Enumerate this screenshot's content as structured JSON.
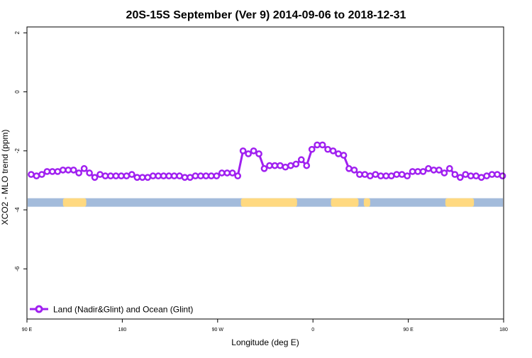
{
  "colors": {
    "series": "#a020f0",
    "land": "#ffd980",
    "ocean": "#a3bbdb",
    "frame": "#000000"
  },
  "chart_data": {
    "type": "line",
    "title": "20S-15S September (Ver 9)   2014-09-06 to 2018-12-31",
    "xlabel": "Longitude (deg E)",
    "ylabel": "XCO2 - MLO trend (ppm)",
    "xlim": [
      90,
      540
    ],
    "ylim": [
      -7.7,
      2.2
    ],
    "x_ticks": [
      {
        "value": 90,
        "label": "90 E"
      },
      {
        "value": 180,
        "label": "180"
      },
      {
        "value": 270,
        "label": "90 W"
      },
      {
        "value": 360,
        "label": "0"
      },
      {
        "value": 450,
        "label": "90 E"
      },
      {
        "value": 540,
        "label": "180"
      }
    ],
    "y_ticks": [
      {
        "value": 2,
        "label": "2"
      },
      {
        "value": 0,
        "label": "0"
      },
      {
        "value": -2,
        "label": "-2"
      },
      {
        "value": -4,
        "label": "-4"
      },
      {
        "value": -6,
        "label": "-6"
      }
    ],
    "grid": false,
    "legend_position": "bottom-left",
    "series": [
      {
        "name": "Land (Nadir&Glint) and Ocean (Glint)",
        "x": [
          94,
          99,
          104,
          109,
          114,
          119,
          124,
          129,
          134,
          139,
          144,
          149,
          154,
          159,
          164,
          169,
          174,
          179,
          184,
          189,
          194,
          199,
          204,
          209,
          214,
          219,
          224,
          229,
          234,
          239,
          244,
          249,
          254,
          259,
          264,
          269,
          274,
          279,
          284,
          289,
          294,
          299,
          304,
          309,
          314,
          319,
          324,
          329,
          334,
          339,
          344,
          349,
          354,
          359,
          364,
          369,
          374,
          379,
          384,
          389,
          394,
          399,
          404,
          409,
          414,
          419,
          424,
          429,
          434,
          439,
          444,
          449,
          454,
          459,
          464,
          469,
          474,
          479,
          484,
          489,
          494,
          499,
          504,
          509,
          514,
          519,
          524,
          529,
          534,
          539
        ],
        "y": [
          -2.8,
          -2.85,
          -2.8,
          -2.7,
          -2.7,
          -2.7,
          -2.65,
          -2.65,
          -2.65,
          -2.75,
          -2.6,
          -2.75,
          -2.9,
          -2.8,
          -2.85,
          -2.85,
          -2.85,
          -2.85,
          -2.85,
          -2.8,
          -2.9,
          -2.9,
          -2.9,
          -2.85,
          -2.85,
          -2.85,
          -2.85,
          -2.85,
          -2.85,
          -2.9,
          -2.9,
          -2.85,
          -2.85,
          -2.85,
          -2.85,
          -2.85,
          -2.75,
          -2.75,
          -2.75,
          -2.85,
          -2.0,
          -2.1,
          -2.0,
          -2.1,
          -2.6,
          -2.5,
          -2.5,
          -2.5,
          -2.55,
          -2.5,
          -2.45,
          -2.3,
          -2.5,
          -1.95,
          -1.8,
          -1.8,
          -1.95,
          -2.0,
          -2.1,
          -2.15,
          -2.6,
          -2.65,
          -2.8,
          -2.8,
          -2.85,
          -2.8,
          -2.85,
          -2.85,
          -2.85,
          -2.8,
          -2.8,
          -2.85,
          -2.7,
          -2.7,
          -2.7,
          -2.6,
          -2.65,
          -2.65,
          -2.75,
          -2.6,
          -2.8,
          -2.9,
          -2.8,
          -2.85,
          -2.85,
          -2.9,
          -2.85,
          -2.8,
          -2.8,
          -2.85
        ]
      }
    ],
    "surface_strip": {
      "y_value": -3.75,
      "land_ranges": [
        [
          124,
          146
        ],
        [
          292,
          345
        ],
        [
          377,
          403
        ],
        [
          408,
          414
        ],
        [
          485,
          512
        ]
      ]
    }
  }
}
